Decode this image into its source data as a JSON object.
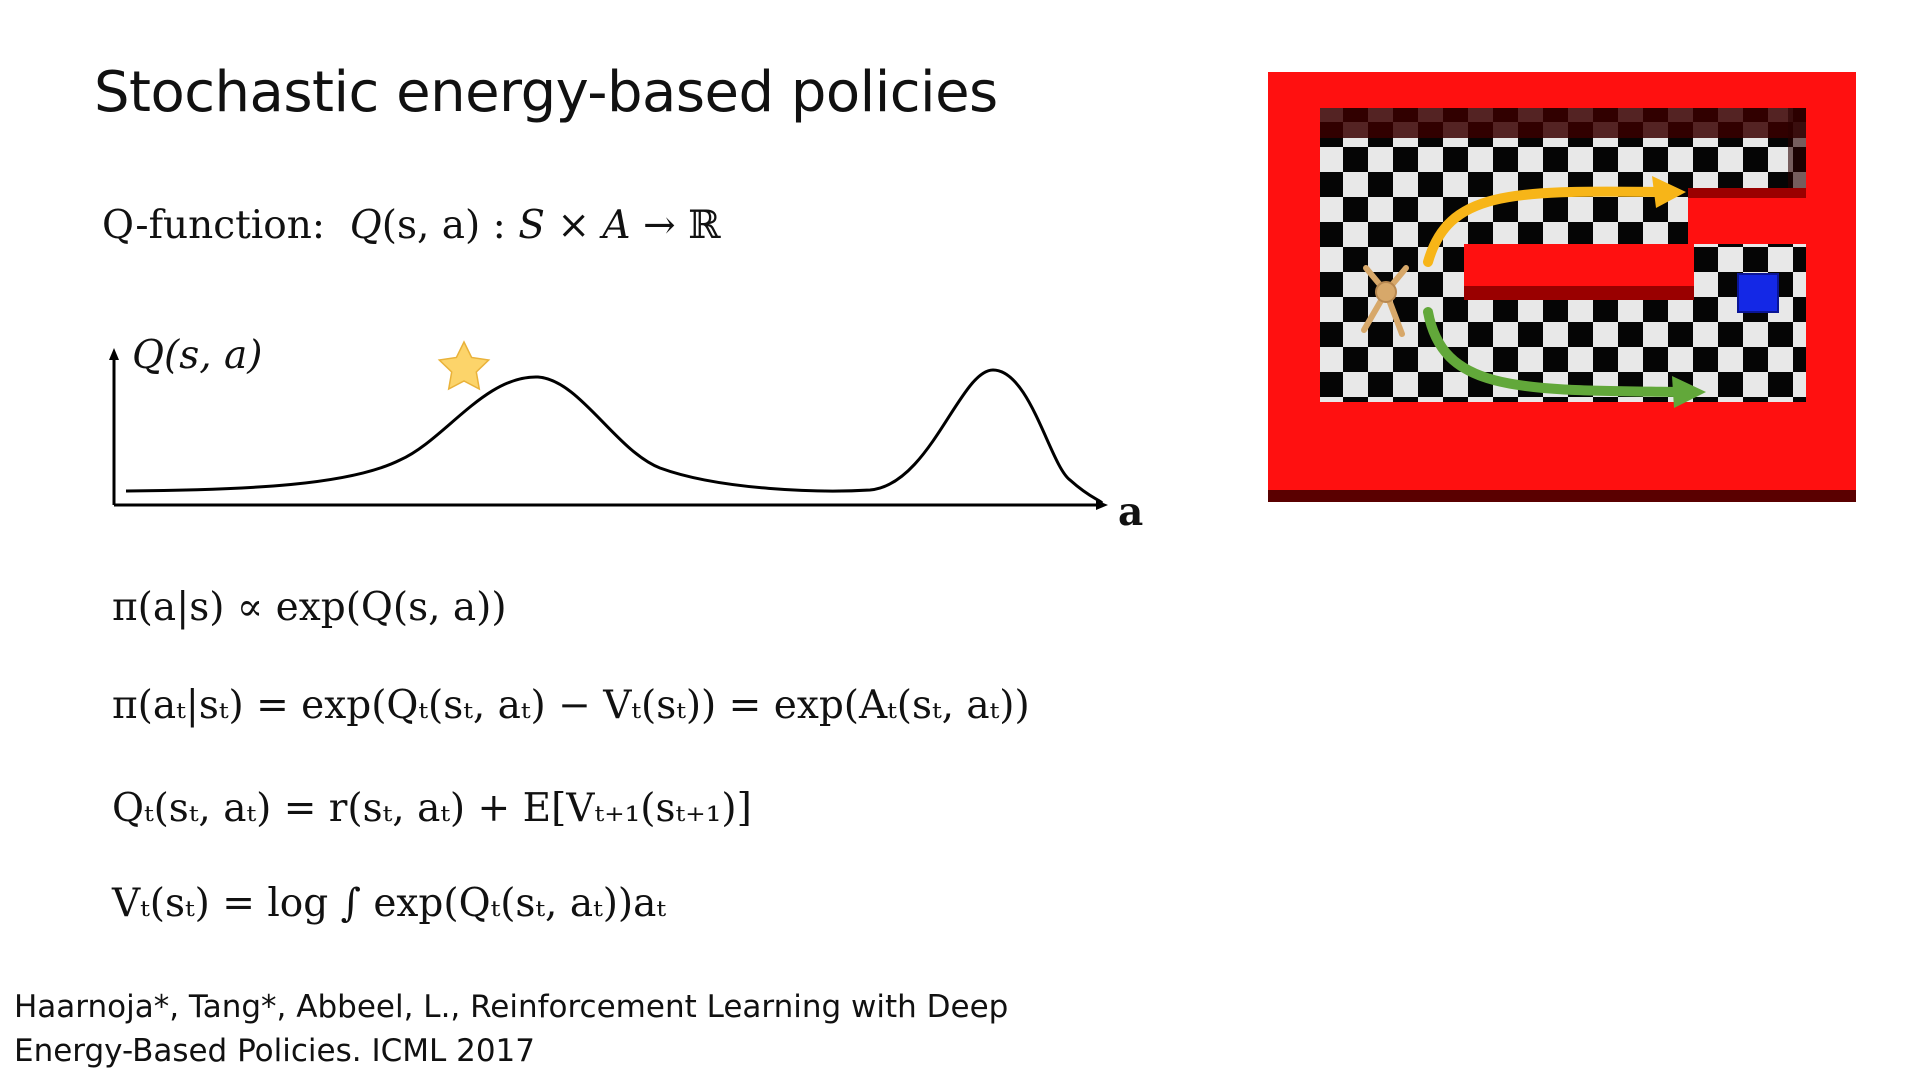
{
  "slide": {
    "title": "Stochastic energy-based policies"
  },
  "qfunction_line": {
    "label": "Q-function:",
    "Q": "Q",
    "args": "(s, a)",
    "colon": " : ",
    "S": "S",
    "times": " × ",
    "A": "A",
    "arrow": " → ",
    "R": "ℝ"
  },
  "plot": {
    "ylabel": "Q(s, a)",
    "xlabel": "a",
    "marker": "star",
    "star_color": "#fcd46a",
    "curve_color": "#000000"
  },
  "equations": {
    "eq1": "π(a|s) ∝ exp(Q(s, a))",
    "eq2": "π(aₜ|sₜ) = exp(Qₜ(sₜ, aₜ) − Vₜ(sₜ)) = exp(Aₜ(sₜ, aₜ))",
    "eq3": "Qₜ(sₜ, aₜ) = r(sₜ, aₜ) + E[Vₜ₊₁(sₜ₊₁)]",
    "eq4": "Vₜ(sₜ) = log ∫ exp(Qₜ(sₜ, aₜ))aₜ"
  },
  "citation": {
    "line1": "Haarnoja*, Tang*, Abbeel, L., Reinforcement Learning with Deep",
    "line2": "Energy-Based Policies. ICML 2017"
  },
  "maze_image": {
    "wall_color": "#ff1010",
    "goal_color": "#1428e6",
    "upper_arrow_color": "#f7b518",
    "lower_arrow_color": "#62a83a"
  }
}
